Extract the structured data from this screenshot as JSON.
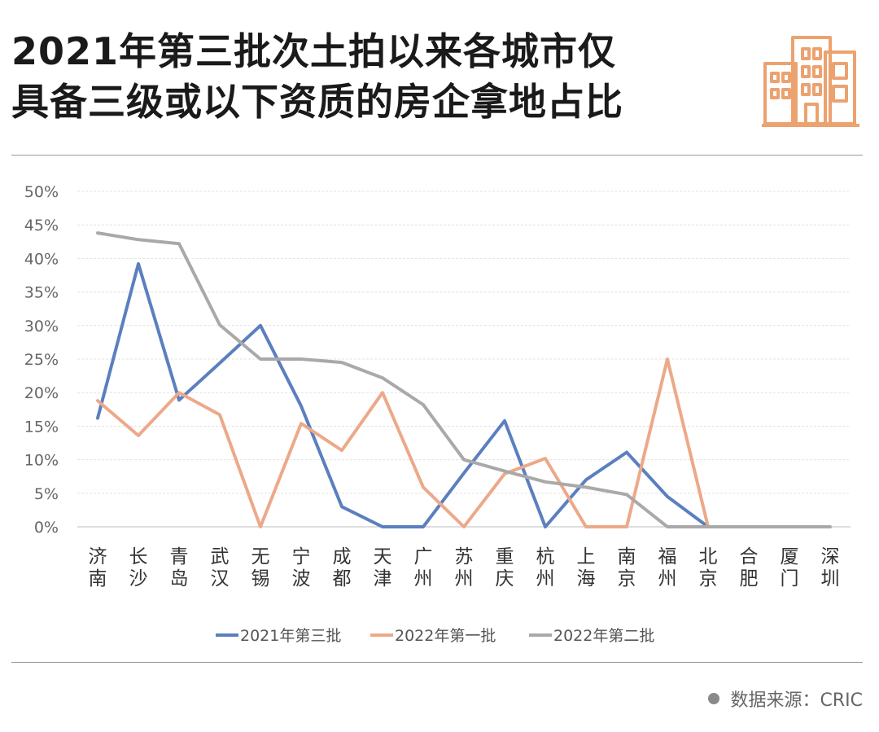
{
  "title_line1": "2021年第三批次土拍以来各城市仅",
  "title_line2": "具备三级或以下资质的房企拿地占比",
  "source": "数据来源：CRIC",
  "colors": {
    "series_2021_3": "#5b7fbf",
    "series_2022_1": "#eca98a",
    "series_2022_2": "#a9a9a9",
    "logo": "#eca26f",
    "grid": "#dcdcdc"
  },
  "icons": {
    "logo": "buildings-icon",
    "source_dot": "bullet-dot-icon"
  },
  "chart_data": {
    "type": "line",
    "categories": [
      "济南",
      "长沙",
      "青岛",
      "武汉",
      "无锡",
      "宁波",
      "成都",
      "天津",
      "广州",
      "苏州",
      "重庆",
      "杭州",
      "上海",
      "南京",
      "福州",
      "北京",
      "合肥",
      "厦门",
      "深圳"
    ],
    "ylim": [
      0,
      50
    ],
    "yticks": [
      "0%",
      "5%",
      "10%",
      "15%",
      "20%",
      "25%",
      "30%",
      "35%",
      "40%",
      "45%",
      "50%"
    ],
    "grid": true,
    "legend_position": "bottom",
    "series": [
      {
        "name": "2021年第三批",
        "color": "#5b7fbf",
        "values": [
          16.2,
          39.2,
          18.9,
          24.4,
          30.0,
          18.0,
          3.0,
          0,
          0,
          8.0,
          15.8,
          0,
          7.0,
          11.1,
          4.5,
          0,
          null,
          null,
          null
        ]
      },
      {
        "name": "2022年第一批",
        "color": "#eca98a",
        "values": [
          18.8,
          13.6,
          20.0,
          16.7,
          0,
          15.4,
          11.4,
          20.0,
          5.9,
          0,
          7.9,
          10.2,
          0,
          0,
          25.0,
          0,
          null,
          null,
          null
        ]
      },
      {
        "name": "2022年第二批",
        "color": "#a9a9a9",
        "values": [
          43.8,
          42.8,
          42.2,
          30.1,
          25.0,
          25.0,
          24.5,
          22.2,
          18.2,
          10.0,
          8.3,
          6.7,
          5.9,
          4.8,
          0,
          0,
          0,
          0,
          0
        ]
      }
    ]
  }
}
